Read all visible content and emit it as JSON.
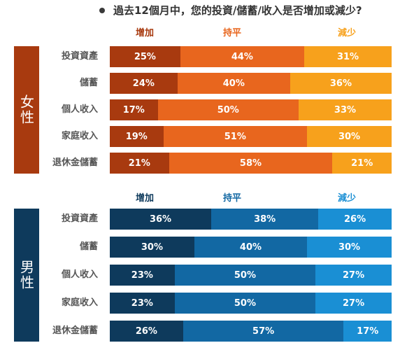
{
  "title": "過去12個月中，您的投資/儲蓄/收入是否增加或減少?",
  "chart_data": [
    {
      "type": "bar",
      "stacked": "percent",
      "orientation": "horizontal",
      "group": "女性",
      "legend": [
        "增加",
        "持平",
        "減少"
      ],
      "colors": [
        "#a83a0f",
        "#e8661e",
        "#f7a11c"
      ],
      "side_color": "#a83a0f",
      "categories": [
        "投資資產",
        "儲蓄",
        "個人收入",
        "家庭收入",
        "退休金儲蓄"
      ],
      "series": [
        {
          "name": "增加",
          "values": [
            25,
            24,
            17,
            19,
            21
          ]
        },
        {
          "name": "持平",
          "values": [
            44,
            40,
            50,
            51,
            58
          ]
        },
        {
          "name": "減少",
          "values": [
            31,
            36,
            33,
            30,
            21
          ]
        }
      ]
    },
    {
      "type": "bar",
      "stacked": "percent",
      "orientation": "horizontal",
      "group": "男性",
      "legend": [
        "增加",
        "持平",
        "減少"
      ],
      "colors": [
        "#0e3a5c",
        "#1268a3",
        "#1a8fd4"
      ],
      "side_color": "#0e3a5c",
      "categories": [
        "投資資產",
        "儲蓄",
        "個人收入",
        "家庭收入",
        "退休金儲蓄"
      ],
      "series": [
        {
          "name": "增加",
          "values": [
            36,
            30,
            23,
            23,
            26
          ]
        },
        {
          "name": "持平",
          "values": [
            38,
            40,
            50,
            50,
            57
          ]
        },
        {
          "name": "減少",
          "values": [
            26,
            30,
            27,
            27,
            17
          ]
        }
      ]
    }
  ]
}
